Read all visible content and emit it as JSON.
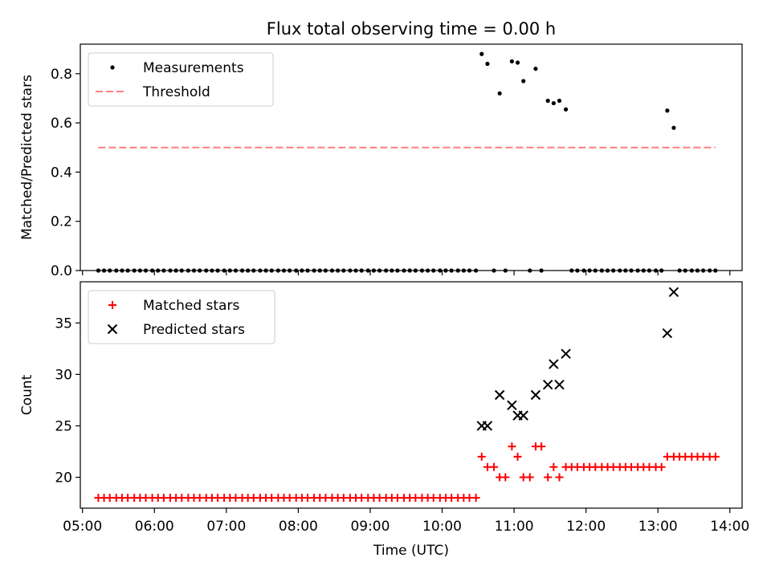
{
  "figure": {
    "title": "Flux total observing time = 0.00 h",
    "xlabel": "Time (UTC)",
    "x_ticks": [
      "05:00",
      "06:00",
      "07:00",
      "08:00",
      "09:00",
      "10:00",
      "11:00",
      "12:00",
      "13:00",
      "14:00"
    ]
  },
  "chart_data": [
    {
      "type": "scatter",
      "title": "Flux total observing time = 0.00 h",
      "xlabel": "",
      "ylabel": "Matched/Predicted stars",
      "x_unit": "hours UTC",
      "xlim": [
        4.97,
        14.17
      ],
      "ylim": [
        0.0,
        0.92
      ],
      "y_ticks": [
        "0.0",
        "0.2",
        "0.4",
        "0.6",
        "0.8"
      ],
      "legend": "top-left",
      "series": [
        {
          "name": "Measurements",
          "marker": "dot",
          "color": "#000000",
          "points": [
            [
              5.22,
              0
            ],
            [
              5.3,
              0
            ],
            [
              5.38,
              0
            ],
            [
              5.47,
              0
            ],
            [
              5.55,
              0
            ],
            [
              5.63,
              0
            ],
            [
              5.72,
              0
            ],
            [
              5.8,
              0
            ],
            [
              5.88,
              0
            ],
            [
              5.97,
              0
            ],
            [
              6.05,
              0
            ],
            [
              6.13,
              0
            ],
            [
              6.22,
              0
            ],
            [
              6.3,
              0
            ],
            [
              6.38,
              0
            ],
            [
              6.47,
              0
            ],
            [
              6.55,
              0
            ],
            [
              6.63,
              0
            ],
            [
              6.72,
              0
            ],
            [
              6.8,
              0
            ],
            [
              6.88,
              0
            ],
            [
              6.97,
              0
            ],
            [
              7.05,
              0
            ],
            [
              7.13,
              0
            ],
            [
              7.22,
              0
            ],
            [
              7.3,
              0
            ],
            [
              7.38,
              0
            ],
            [
              7.47,
              0
            ],
            [
              7.55,
              0
            ],
            [
              7.63,
              0
            ],
            [
              7.72,
              0
            ],
            [
              7.8,
              0
            ],
            [
              7.88,
              0
            ],
            [
              7.97,
              0
            ],
            [
              8.05,
              0
            ],
            [
              8.13,
              0
            ],
            [
              8.22,
              0
            ],
            [
              8.3,
              0
            ],
            [
              8.38,
              0
            ],
            [
              8.47,
              0
            ],
            [
              8.55,
              0
            ],
            [
              8.63,
              0
            ],
            [
              8.72,
              0
            ],
            [
              8.8,
              0
            ],
            [
              8.88,
              0
            ],
            [
              8.97,
              0
            ],
            [
              9.05,
              0
            ],
            [
              9.13,
              0
            ],
            [
              9.22,
              0
            ],
            [
              9.3,
              0
            ],
            [
              9.38,
              0
            ],
            [
              9.47,
              0
            ],
            [
              9.55,
              0
            ],
            [
              9.63,
              0
            ],
            [
              9.72,
              0
            ],
            [
              9.8,
              0
            ],
            [
              9.88,
              0
            ],
            [
              9.97,
              0
            ],
            [
              10.05,
              0
            ],
            [
              10.13,
              0
            ],
            [
              10.22,
              0
            ],
            [
              10.3,
              0
            ],
            [
              10.38,
              0
            ],
            [
              10.47,
              0
            ],
            [
              10.55,
              0.88
            ],
            [
              10.63,
              0.84
            ],
            [
              10.72,
              0
            ],
            [
              10.8,
              0.72
            ],
            [
              10.88,
              0
            ],
            [
              10.97,
              0.85
            ],
            [
              11.05,
              0.845
            ],
            [
              11.13,
              0.77
            ],
            [
              11.22,
              0
            ],
            [
              11.3,
              0.82
            ],
            [
              11.38,
              0
            ],
            [
              11.47,
              0.69
            ],
            [
              11.55,
              0.68
            ],
            [
              11.63,
              0.69
            ],
            [
              11.72,
              0.655
            ],
            [
              11.8,
              0
            ],
            [
              11.88,
              0
            ],
            [
              11.97,
              0
            ],
            [
              12.05,
              0
            ],
            [
              12.13,
              0
            ],
            [
              12.22,
              0
            ],
            [
              12.3,
              0
            ],
            [
              12.38,
              0
            ],
            [
              12.47,
              0
            ],
            [
              12.55,
              0
            ],
            [
              12.63,
              0
            ],
            [
              12.72,
              0
            ],
            [
              12.8,
              0
            ],
            [
              12.88,
              0
            ],
            [
              12.97,
              0
            ],
            [
              13.05,
              0
            ],
            [
              13.13,
              0.65
            ],
            [
              13.22,
              0.58
            ],
            [
              13.3,
              0
            ],
            [
              13.38,
              0
            ],
            [
              13.47,
              0
            ],
            [
              13.55,
              0
            ],
            [
              13.63,
              0
            ],
            [
              13.72,
              0
            ],
            [
              13.8,
              0
            ]
          ]
        },
        {
          "name": "Threshold",
          "style": "dashed-line",
          "color": "#ff7f7f",
          "points": [
            [
              5.22,
              0.5
            ],
            [
              13.8,
              0.5
            ]
          ]
        }
      ]
    },
    {
      "type": "scatter",
      "title": "",
      "xlabel": "Time (UTC)",
      "ylabel": "Count",
      "x_unit": "hours UTC",
      "xlim": [
        4.97,
        14.17
      ],
      "ylim": [
        17.0,
        39.0
      ],
      "y_ticks": [
        "20",
        "25",
        "30",
        "35"
      ],
      "legend": "top-left",
      "series": [
        {
          "name": "Matched stars",
          "marker": "plus",
          "color": "#ff0000",
          "points": [
            [
              5.22,
              18
            ],
            [
              5.3,
              18
            ],
            [
              5.38,
              18
            ],
            [
              5.47,
              18
            ],
            [
              5.55,
              18
            ],
            [
              5.63,
              18
            ],
            [
              5.72,
              18
            ],
            [
              5.8,
              18
            ],
            [
              5.88,
              18
            ],
            [
              5.97,
              18
            ],
            [
              6.05,
              18
            ],
            [
              6.13,
              18
            ],
            [
              6.22,
              18
            ],
            [
              6.3,
              18
            ],
            [
              6.38,
              18
            ],
            [
              6.47,
              18
            ],
            [
              6.55,
              18
            ],
            [
              6.63,
              18
            ],
            [
              6.72,
              18
            ],
            [
              6.8,
              18
            ],
            [
              6.88,
              18
            ],
            [
              6.97,
              18
            ],
            [
              7.05,
              18
            ],
            [
              7.13,
              18
            ],
            [
              7.22,
              18
            ],
            [
              7.3,
              18
            ],
            [
              7.38,
              18
            ],
            [
              7.47,
              18
            ],
            [
              7.55,
              18
            ],
            [
              7.63,
              18
            ],
            [
              7.72,
              18
            ],
            [
              7.8,
              18
            ],
            [
              7.88,
              18
            ],
            [
              7.97,
              18
            ],
            [
              8.05,
              18
            ],
            [
              8.13,
              18
            ],
            [
              8.22,
              18
            ],
            [
              8.3,
              18
            ],
            [
              8.38,
              18
            ],
            [
              8.47,
              18
            ],
            [
              8.55,
              18
            ],
            [
              8.63,
              18
            ],
            [
              8.72,
              18
            ],
            [
              8.8,
              18
            ],
            [
              8.88,
              18
            ],
            [
              8.97,
              18
            ],
            [
              9.05,
              18
            ],
            [
              9.13,
              18
            ],
            [
              9.22,
              18
            ],
            [
              9.3,
              18
            ],
            [
              9.38,
              18
            ],
            [
              9.47,
              18
            ],
            [
              9.55,
              18
            ],
            [
              9.63,
              18
            ],
            [
              9.72,
              18
            ],
            [
              9.8,
              18
            ],
            [
              9.88,
              18
            ],
            [
              9.97,
              18
            ],
            [
              10.05,
              18
            ],
            [
              10.13,
              18
            ],
            [
              10.22,
              18
            ],
            [
              10.3,
              18
            ],
            [
              10.38,
              18
            ],
            [
              10.47,
              18
            ],
            [
              10.55,
              22
            ],
            [
              10.63,
              21
            ],
            [
              10.72,
              21
            ],
            [
              10.8,
              20
            ],
            [
              10.88,
              20
            ],
            [
              10.97,
              23
            ],
            [
              11.05,
              22
            ],
            [
              11.13,
              20
            ],
            [
              11.22,
              20
            ],
            [
              11.3,
              23
            ],
            [
              11.38,
              23
            ],
            [
              11.47,
              20
            ],
            [
              11.55,
              21
            ],
            [
              11.63,
              20
            ],
            [
              11.72,
              21
            ],
            [
              11.8,
              21
            ],
            [
              11.88,
              21
            ],
            [
              11.97,
              21
            ],
            [
              12.05,
              21
            ],
            [
              12.13,
              21
            ],
            [
              12.22,
              21
            ],
            [
              12.3,
              21
            ],
            [
              12.38,
              21
            ],
            [
              12.47,
              21
            ],
            [
              12.55,
              21
            ],
            [
              12.63,
              21
            ],
            [
              12.72,
              21
            ],
            [
              12.8,
              21
            ],
            [
              12.88,
              21
            ],
            [
              12.97,
              21
            ],
            [
              13.05,
              21
            ],
            [
              13.13,
              22
            ],
            [
              13.22,
              22
            ],
            [
              13.3,
              22
            ],
            [
              13.38,
              22
            ],
            [
              13.47,
              22
            ],
            [
              13.55,
              22
            ],
            [
              13.63,
              22
            ],
            [
              13.72,
              22
            ],
            [
              13.8,
              22
            ]
          ]
        },
        {
          "name": "Predicted stars",
          "marker": "x",
          "color": "#000000",
          "points": [
            [
              10.55,
              25
            ],
            [
              10.63,
              25
            ],
            [
              10.8,
              28
            ],
            [
              10.97,
              27
            ],
            [
              11.05,
              26
            ],
            [
              11.13,
              26
            ],
            [
              11.3,
              28
            ],
            [
              11.47,
              29
            ],
            [
              11.55,
              31
            ],
            [
              11.63,
              29
            ],
            [
              11.72,
              32
            ],
            [
              13.13,
              34
            ],
            [
              13.22,
              38
            ]
          ]
        }
      ]
    }
  ]
}
